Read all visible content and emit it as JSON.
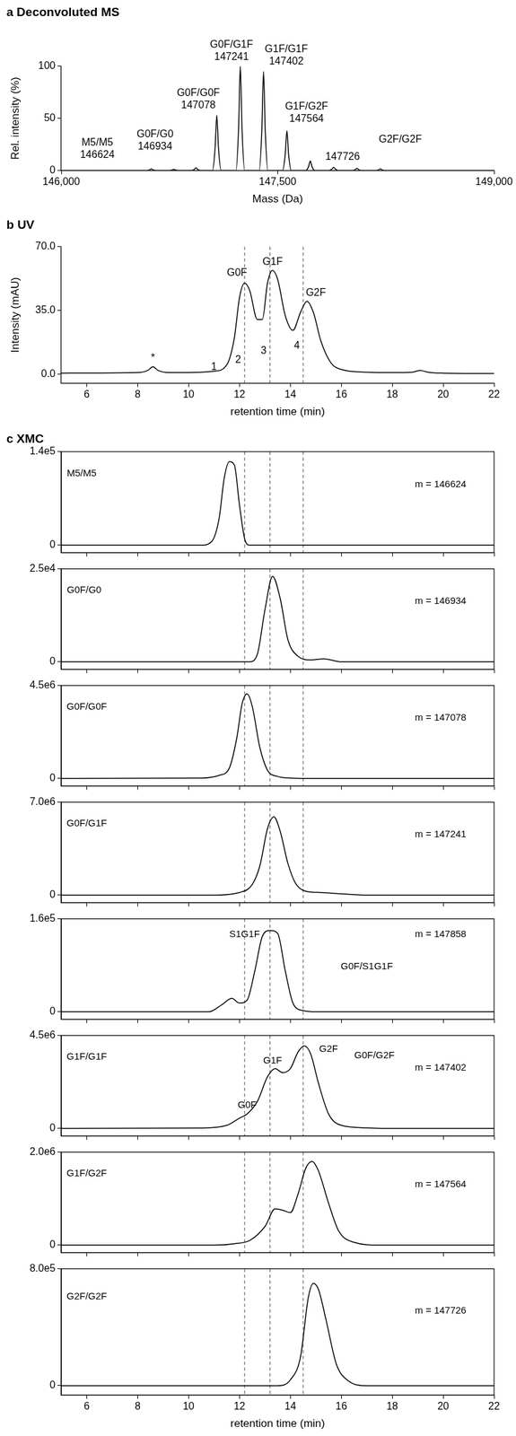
{
  "chart_data": [
    {
      "type": "line",
      "title": "a Deconvoluted MS",
      "x_label": "Mass (Da)",
      "y_label": "Rel. intensity (%)",
      "x": [
        146000,
        146594,
        146612,
        146624,
        146636,
        146654,
        146750,
        146768,
        146780,
        146792,
        146810,
        146904,
        146922,
        146934,
        146946,
        146964,
        147048,
        147066,
        147078,
        147090,
        147108,
        147211,
        147229,
        147241,
        147253,
        147271,
        147372,
        147390,
        147402,
        147414,
        147432,
        147534,
        147552,
        147564,
        147576,
        147594,
        147696,
        147714,
        147726,
        147738,
        147756,
        147858,
        147876,
        147888,
        147900,
        147918,
        148020,
        148038,
        148050,
        148062,
        148080,
        148182,
        148200,
        148212,
        148224,
        148242,
        149000
      ],
      "values": [
        0,
        0,
        0.6,
        1.5,
        0.6,
        0,
        0,
        0.4,
        1,
        0.4,
        0,
        0,
        1,
        2.5,
        1,
        0,
        0,
        21,
        53,
        21,
        0,
        0,
        40,
        100,
        40,
        0,
        0,
        38,
        95,
        38,
        0,
        0,
        15,
        38,
        15,
        0,
        0,
        3.6,
        9,
        3.6,
        0,
        0,
        1.2,
        3,
        1.2,
        0,
        0,
        0.8,
        2,
        0.8,
        0,
        0,
        0.6,
        1.5,
        0.6,
        0,
        0
      ],
      "color": "#000000",
      "xlim": [
        146000,
        149000
      ],
      "xticks": [
        {
          "value": 146000,
          "label": "146,000"
        },
        {
          "value": 147500,
          "label": "147,500"
        },
        {
          "value": 149000,
          "label": "149,000"
        }
      ],
      "ylim": [
        0,
        100
      ],
      "yticks": [
        0,
        50,
        100
      ],
      "annotations": [
        {
          "text": [
            "M5/M5",
            "146624"
          ],
          "x": 146250,
          "y": 10
        },
        {
          "text": [
            "G0F/G0",
            "146934"
          ],
          "x": 146650,
          "y": 18
        },
        {
          "text": [
            "G0F/G0F",
            "147078"
          ],
          "x": 146950,
          "y": 58
        },
        {
          "text": [
            "G0F/G1F",
            "147241"
          ],
          "x": 147180,
          "y": 104
        },
        {
          "text": [
            "G1F/G1F",
            "147402"
          ],
          "x": 147560,
          "y": 100
        },
        {
          "text": [
            "G1F/G2F",
            "147564"
          ],
          "x": 147700,
          "y": 45
        },
        {
          "text": "147726",
          "x": 147950,
          "y": 8
        },
        {
          "text": "G2F/G2F",
          "x": 148350,
          "y": 25
        }
      ]
    },
    {
      "type": "line",
      "title": "b UV",
      "x_label": "retention time (min)",
      "y_label": "Intensity (mAU)",
      "x": [
        5,
        8,
        8.4,
        8.6,
        8.8,
        9.2,
        10,
        11,
        11.5,
        11.8,
        12.0,
        12.2,
        12.4,
        12.7,
        12.9,
        13.1,
        13.3,
        13.5,
        13.8,
        14.1,
        14.4,
        14.65,
        14.9,
        15.2,
        15.6,
        16,
        17,
        18,
        18.8,
        19.1,
        19.4,
        20,
        22
      ],
      "values": [
        0.5,
        0.8,
        2,
        4,
        2,
        0.8,
        0.8,
        1.5,
        5,
        20,
        42,
        50,
        46,
        30,
        30,
        50,
        57,
        52,
        32,
        24,
        34,
        40,
        34,
        18,
        6,
        2.5,
        1,
        0.8,
        1,
        2,
        1,
        0.5,
        0.3
      ],
      "color": "#000000",
      "xlim": [
        5,
        22
      ],
      "xticks": [
        6,
        8,
        10,
        12,
        14,
        16,
        18,
        20,
        22
      ],
      "ylim": [
        -5,
        70
      ],
      "yticks": [
        {
          "value": 0,
          "label": "0.0"
        },
        {
          "value": 35,
          "label": "35.0"
        },
        {
          "value": 70,
          "label": "70.0"
        }
      ],
      "vlines": [
        12.2,
        13.2,
        14.5
      ],
      "annotations": [
        {
          "text": "G0F",
          "x": 11.9,
          "y": 53
        },
        {
          "text": "G1F",
          "x": 13.3,
          "y": 59
        },
        {
          "text": "G2F",
          "x": 15.0,
          "y": 42
        },
        {
          "text": "*",
          "x": 8.6,
          "y": 6
        },
        {
          "text": "1",
          "x": 11.0,
          "y": 1
        },
        {
          "text": "2",
          "x": 11.95,
          "y": 5
        },
        {
          "text": "3",
          "x": 12.95,
          "y": 10
        },
        {
          "text": "4",
          "x": 14.25,
          "y": 13
        }
      ]
    },
    {
      "type": "line",
      "title": "c XMC",
      "tick_labels": "y",
      "x": [
        5,
        10.5,
        10.9,
        11.2,
        11.4,
        11.6,
        11.8,
        12.0,
        12.2,
        12.4,
        22
      ],
      "values": [
        0,
        0,
        5000,
        40000,
        100000,
        125000,
        120000,
        60000,
        10000,
        0,
        0
      ],
      "color": "#000000",
      "xlim": [
        5,
        22
      ],
      "xticks": [
        6,
        8,
        10,
        12,
        14,
        16,
        18,
        20,
        22
      ],
      "ylim": [
        -11200,
        140000
      ],
      "yticks": [
        0,
        {
          "value": 140000,
          "label": "1.4e5"
        }
      ],
      "vlines": [
        12.2,
        13.2,
        14.5
      ],
      "annotations": [
        {
          "text": "M5/M5",
          "x": 5.8,
          "y": 100000
        },
        {
          "text": "m = 146624",
          "x": 19.9,
          "y": 84000
        }
      ]
    },
    {
      "type": "line",
      "tick_labels": "y",
      "x": [
        5,
        12.4,
        12.7,
        13.0,
        13.3,
        13.6,
        13.9,
        14.3,
        14.8,
        15.3,
        16,
        22
      ],
      "values": [
        0,
        0,
        2000,
        14000,
        23000,
        17000,
        6000,
        1500,
        500,
        800,
        0,
        0
      ],
      "color": "#000000",
      "xlim": [
        5,
        22
      ],
      "xticks": [
        6,
        8,
        10,
        12,
        14,
        16,
        18,
        20,
        22
      ],
      "ylim": [
        -2000,
        25000
      ],
      "yticks": [
        0,
        {
          "value": 25000,
          "label": "2.5e4"
        }
      ],
      "vlines": [
        12.2,
        13.2,
        14.5
      ],
      "annotations": [
        {
          "text": "G0F/G0",
          "x": 5.9,
          "y": 18000
        },
        {
          "text": "m = 146934",
          "x": 19.9,
          "y": 15000
        }
      ]
    },
    {
      "type": "line",
      "tick_labels": "y",
      "x": [
        5,
        10.5,
        11.2,
        11.6,
        11.9,
        12.1,
        12.3,
        12.5,
        12.8,
        13.1,
        13.5,
        14,
        15,
        22
      ],
      "values": [
        0,
        20000,
        150000,
        500000,
        2000000,
        3600000,
        4100000,
        3500000,
        1500000,
        400000,
        100000,
        20000,
        0,
        0
      ],
      "color": "#000000",
      "xlim": [
        5,
        22
      ],
      "xticks": [
        6,
        8,
        10,
        12,
        14,
        16,
        18,
        20,
        22
      ],
      "ylim": [
        -360000,
        4500000
      ],
      "yticks": [
        0,
        {
          "value": 4500000,
          "label": "4.5e6"
        }
      ],
      "vlines": [
        12.2,
        13.2,
        14.5
      ],
      "annotations": [
        {
          "text": "G0F/G0F",
          "x": 6.0,
          "y": 3240000
        },
        {
          "text": "m = 147078",
          "x": 19.9,
          "y": 2700000
        }
      ]
    },
    {
      "type": "line",
      "tick_labels": "y",
      "x": [
        5,
        11,
        12,
        12.5,
        12.8,
        13.1,
        13.35,
        13.6,
        13.9,
        14.2,
        14.6,
        15.2,
        16,
        17,
        22
      ],
      "values": [
        0,
        0,
        200000,
        800000,
        2200000,
        5000000,
        5900000,
        4800000,
        2400000,
        900000,
        300000,
        200000,
        100000,
        0,
        0
      ],
      "color": "#000000",
      "xlim": [
        5,
        22
      ],
      "xticks": [
        6,
        8,
        10,
        12,
        14,
        16,
        18,
        20,
        22
      ],
      "ylim": [
        -560000,
        7000000
      ],
      "yticks": [
        0,
        {
          "value": 7000000,
          "label": "7.0e6"
        }
      ],
      "vlines": [
        12.2,
        13.2,
        14.5
      ],
      "annotations": [
        {
          "text": "G0F/G1F",
          "x": 6.0,
          "y": 5040000
        },
        {
          "text": "m = 147241",
          "x": 19.9,
          "y": 4200000
        }
      ]
    },
    {
      "type": "line",
      "tick_labels": "y",
      "x": [
        5,
        10.8,
        11.3,
        11.7,
        12.0,
        12.3,
        12.6,
        12.9,
        13.2,
        13.5,
        13.8,
        14.1,
        14.5,
        15,
        22
      ],
      "values": [
        0,
        0,
        12000,
        23000,
        15000,
        20000,
        70000,
        130000,
        140000,
        135000,
        70000,
        15000,
        2000,
        0,
        0
      ],
      "color": "#000000",
      "xlim": [
        5,
        22
      ],
      "xticks": [
        6,
        8,
        10,
        12,
        14,
        16,
        18,
        20,
        22
      ],
      "ylim": [
        -12800,
        160000
      ],
      "yticks": [
        0,
        {
          "value": 160000,
          "label": "1.6e5"
        }
      ],
      "vlines": [
        12.2,
        13.2,
        14.5
      ],
      "annotations": [
        {
          "text": "S1G1F",
          "x": 12.2,
          "y": 125000
        },
        {
          "text": "G0F/S1G1F",
          "x": 17.0,
          "y": 70000
        },
        {
          "text": "m = 147858",
          "x": 19.9,
          "y": 125000
        }
      ]
    },
    {
      "type": "line",
      "tick_labels": "y",
      "x": [
        5,
        10.5,
        11.5,
        12.0,
        12.3,
        12.7,
        13.1,
        13.4,
        13.7,
        14.0,
        14.3,
        14.55,
        14.8,
        15.1,
        15.5,
        16,
        17,
        18,
        22
      ],
      "values": [
        0,
        20000,
        150000,
        500000,
        700000,
        1300000,
        2500000,
        2900000,
        2700000,
        2900000,
        3700000,
        4000000,
        3600000,
        2200000,
        700000,
        150000,
        30000,
        0,
        0
      ],
      "color": "#000000",
      "xlim": [
        5,
        22
      ],
      "xticks": [
        6,
        8,
        10,
        12,
        14,
        16,
        18,
        20,
        22
      ],
      "ylim": [
        -360000,
        4500000
      ],
      "yticks": [
        0,
        {
          "value": 4500000,
          "label": "4.5e6"
        }
      ],
      "vlines": [
        12.2,
        13.2,
        14.5
      ],
      "annotations": [
        {
          "text": "G1F/G1F",
          "x": 6.0,
          "y": 3240000
        },
        {
          "text": "G0F",
          "x": 12.3,
          "y": 900000
        },
        {
          "text": "G1F",
          "x": 13.3,
          "y": 3050000
        },
        {
          "text": "G2F",
          "x": 15.5,
          "y": 3600000
        },
        {
          "text": "G0F/G2F",
          "x": 17.3,
          "y": 3300000
        },
        {
          "text": "m = 147402",
          "x": 19.9,
          "y": 2700000
        }
      ]
    },
    {
      "type": "line",
      "tick_labels": "y",
      "x": [
        5,
        11,
        11.8,
        12.4,
        13.0,
        13.4,
        13.7,
        14.0,
        14.3,
        14.6,
        14.85,
        15.1,
        15.5,
        15.9,
        16.5,
        17.5,
        22
      ],
      "values": [
        0,
        0,
        30000,
        100000,
        400000,
        780000,
        750000,
        700000,
        1100000,
        1650000,
        1800000,
        1600000,
        900000,
        300000,
        60000,
        0,
        0
      ],
      "color": "#000000",
      "xlim": [
        5,
        22
      ],
      "xticks": [
        6,
        8,
        10,
        12,
        14,
        16,
        18,
        20,
        22
      ],
      "ylim": [
        -160000,
        2000000
      ],
      "yticks": [
        0,
        {
          "value": 2000000,
          "label": "2.0e6"
        }
      ],
      "vlines": [
        12.2,
        13.2,
        14.5
      ],
      "annotations": [
        {
          "text": "G1F/G2F",
          "x": 6.0,
          "y": 1440000
        },
        {
          "text": "m = 147564",
          "x": 19.9,
          "y": 1200000
        }
      ]
    },
    {
      "type": "line",
      "x_label": "retention time (min)",
      "x": [
        5,
        13.5,
        14.0,
        14.4,
        14.7,
        14.9,
        15.1,
        15.4,
        15.8,
        16.3,
        17,
        22
      ],
      "values": [
        0,
        0,
        40000,
        200000,
        600000,
        700000,
        660000,
        450000,
        150000,
        30000,
        0,
        0
      ],
      "color": "#000000",
      "xlim": [
        5,
        22
      ],
      "xticks": [
        6,
        8,
        10,
        12,
        14,
        16,
        18,
        20,
        22
      ],
      "ylim": [
        -64000,
        800000
      ],
      "yticks": [
        0,
        {
          "value": 800000,
          "label": "8.0e5"
        }
      ],
      "vlines": [
        12.2,
        13.2,
        14.5
      ],
      "annotations": [
        {
          "text": "G2F/G2F",
          "x": 6.0,
          "y": 576000
        },
        {
          "text": "m = 147726",
          "x": 19.9,
          "y": 480000
        }
      ]
    }
  ]
}
